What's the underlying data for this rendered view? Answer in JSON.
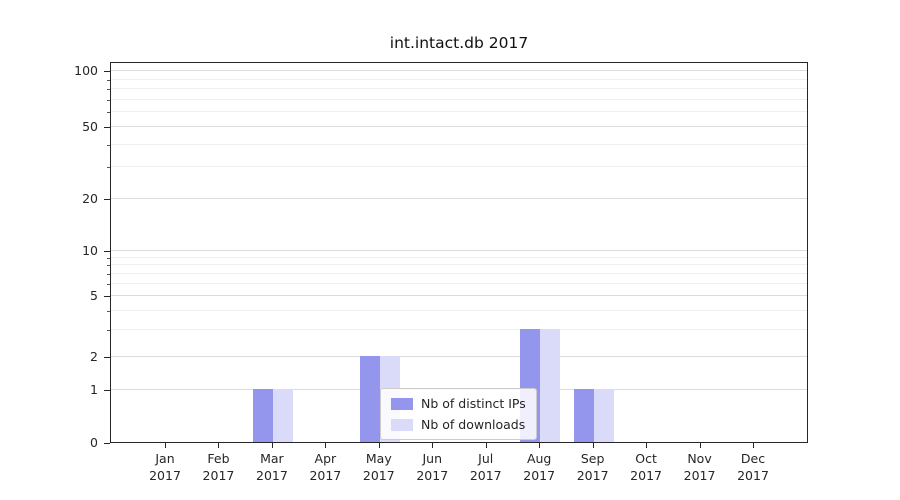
{
  "title": "int.intact.db 2017",
  "chart_data": {
    "type": "bar",
    "title": "int.intact.db 2017",
    "categories": [
      "Jan 2017",
      "Feb 2017",
      "Mar 2017",
      "Apr 2017",
      "May 2017",
      "Jun 2017",
      "Jul 2017",
      "Aug 2017",
      "Sep 2017",
      "Oct 2017",
      "Nov 2017",
      "Dec 2017"
    ],
    "x_tick_labels": [
      {
        "month": "Jan",
        "year": "2017"
      },
      {
        "month": "Feb",
        "year": "2017"
      },
      {
        "month": "Mar",
        "year": "2017"
      },
      {
        "month": "Apr",
        "year": "2017"
      },
      {
        "month": "May",
        "year": "2017"
      },
      {
        "month": "Jun",
        "year": "2017"
      },
      {
        "month": "Jul",
        "year": "2017"
      },
      {
        "month": "Aug",
        "year": "2017"
      },
      {
        "month": "Sep",
        "year": "2017"
      },
      {
        "month": "Oct",
        "year": "2017"
      },
      {
        "month": "Nov",
        "year": "2017"
      },
      {
        "month": "Dec",
        "year": "2017"
      }
    ],
    "series": [
      {
        "name": "Nb of distinct IPs",
        "color": "#9496ed",
        "values": [
          0,
          0,
          1,
          0,
          2,
          0,
          0,
          3,
          1,
          0,
          0,
          0
        ]
      },
      {
        "name": "Nb of downloads",
        "color": "#dadbf8",
        "values": [
          0,
          0,
          1,
          0,
          2,
          0,
          0,
          3,
          1,
          0,
          0,
          0
        ]
      }
    ],
    "y_scale": "symlog",
    "y_ticks": [
      0,
      1,
      2,
      5,
      10,
      20,
      50,
      100
    ],
    "y_minor_ticks": [
      3,
      4,
      6,
      7,
      8,
      9,
      30,
      40,
      60,
      70,
      80,
      90
    ],
    "ylim": [
      0,
      114
    ],
    "grid": true,
    "legend_position": "lower center"
  },
  "legend": {
    "items": [
      {
        "label": "Nb of distinct IPs",
        "color": "#9496ed"
      },
      {
        "label": "Nb of downloads",
        "color": "#dadbf8"
      }
    ]
  }
}
